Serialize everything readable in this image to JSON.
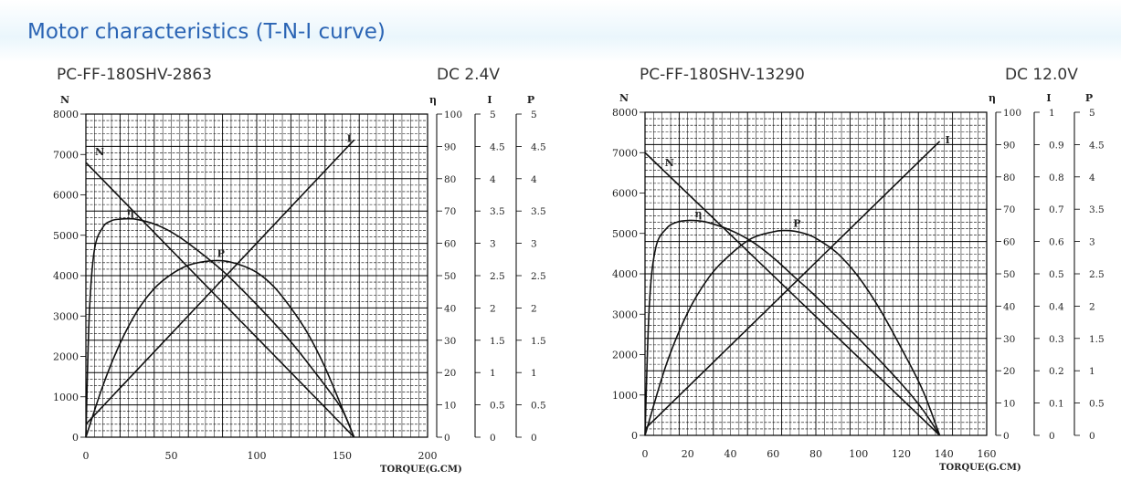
{
  "page": {
    "title": "Motor characteristics (T-N-I curve)"
  },
  "chart_data": [
    {
      "type": "line",
      "model": "PC-FF-180SHV-2863",
      "voltage": "DC 2.4V",
      "xlabel": "TORQUE(G.CM)",
      "x_ticks": [
        "0",
        "50",
        "100",
        "150",
        "200"
      ],
      "xlim": [
        0,
        200
      ],
      "axes": [
        {
          "name": "N",
          "ylim": [
            0,
            8000
          ],
          "ticks": [
            "0",
            "1000",
            "2000",
            "3000",
            "4000",
            "5000",
            "6000",
            "7000",
            "8000"
          ]
        },
        {
          "name": "η",
          "ylim": [
            0,
            100
          ],
          "ticks": [
            "0",
            "10",
            "20",
            "30",
            "40",
            "50",
            "60",
            "70",
            "80",
            "90",
            "100"
          ]
        },
        {
          "name": "I",
          "ylim": [
            0,
            5
          ],
          "ticks": [
            "0",
            "0.5",
            "1",
            "1.5",
            "2",
            "2.5",
            "3",
            "3.5",
            "4",
            "4.5",
            "5"
          ]
        },
        {
          "name": "P",
          "ylim": [
            0,
            5
          ],
          "ticks": [
            "0",
            "0.5",
            "1",
            "1.5",
            "2",
            "2.5",
            "3",
            "3.5",
            "4",
            "4.5",
            "5"
          ]
        }
      ],
      "series": [
        {
          "name": "N",
          "axis": "N",
          "x": [
            0,
            157
          ],
          "y": [
            6800,
            0
          ]
        },
        {
          "name": "I",
          "axis": "I",
          "x": [
            0,
            157
          ],
          "y": [
            0.2,
            4.6
          ]
        },
        {
          "name": "η",
          "axis": "η",
          "x": [
            0,
            2,
            5,
            10,
            15,
            20,
            25,
            30,
            40,
            50,
            60,
            80,
            100,
            120,
            140,
            150,
            157
          ],
          "y": [
            0,
            38,
            58,
            65,
            67,
            67.5,
            67.6,
            67.4,
            66,
            63.5,
            60,
            51.5,
            41,
            29.5,
            16,
            8.5,
            0
          ]
        },
        {
          "name": "P",
          "axis": "P",
          "x": [
            0,
            10,
            20,
            30,
            40,
            50,
            60,
            70,
            80,
            90,
            100,
            110,
            120,
            130,
            140,
            150,
            157
          ],
          "y": [
            0,
            0.8,
            1.45,
            1.95,
            2.3,
            2.52,
            2.66,
            2.72,
            2.73,
            2.67,
            2.55,
            2.33,
            2.0,
            1.6,
            1.08,
            0.45,
            0
          ]
        }
      ],
      "curve_labels": [
        "N",
        "I",
        "η",
        "P"
      ],
      "grid": true
    },
    {
      "type": "line",
      "model": "PC-FF-180SHV-13290",
      "voltage": "DC 12.0V",
      "xlabel": "TORQUE(G.CM)",
      "x_ticks": [
        "0",
        "20",
        "40",
        "60",
        "80",
        "100",
        "120",
        "140",
        "160"
      ],
      "xlim": [
        0,
        160
      ],
      "axes": [
        {
          "name": "N",
          "ylim": [
            0,
            8000
          ],
          "ticks": [
            "0",
            "1000",
            "2000",
            "3000",
            "4000",
            "5000",
            "6000",
            "7000",
            "8000"
          ]
        },
        {
          "name": "η",
          "ylim": [
            0,
            100
          ],
          "ticks": [
            "0",
            "10",
            "20",
            "30",
            "40",
            "50",
            "60",
            "70",
            "80",
            "90",
            "100"
          ]
        },
        {
          "name": "I",
          "ylim": [
            0,
            1
          ],
          "ticks": [
            "0",
            "0.1",
            "0.2",
            "0.3",
            "0.4",
            "0.5",
            "0.6",
            "0.7",
            "0.8",
            "0.9",
            "1"
          ]
        },
        {
          "name": "P",
          "ylim": [
            0,
            5
          ],
          "ticks": [
            "0",
            "0.5",
            "1",
            "1.5",
            "2",
            "2.5",
            "3",
            "3.5",
            "4",
            "4.5",
            "5"
          ]
        }
      ],
      "series": [
        {
          "name": "N",
          "axis": "N",
          "x": [
            0,
            138
          ],
          "y": [
            7000,
            0
          ]
        },
        {
          "name": "I",
          "axis": "I",
          "x": [
            0,
            138
          ],
          "y": [
            0.02,
            0.91
          ]
        },
        {
          "name": "η",
          "axis": "η",
          "x": [
            0,
            2,
            5,
            10,
            15,
            20,
            25,
            30,
            40,
            50,
            60,
            70,
            80,
            100,
            120,
            130,
            138
          ],
          "y": [
            0,
            40,
            58,
            64,
            66,
            66.5,
            66.4,
            65.8,
            63.5,
            60,
            55,
            49,
            43,
            30,
            16,
            8,
            0
          ]
        },
        {
          "name": "P",
          "axis": "P",
          "x": [
            0,
            10,
            20,
            30,
            40,
            50,
            60,
            65,
            70,
            75,
            80,
            90,
            100,
            110,
            120,
            130,
            138
          ],
          "y": [
            0,
            1.1,
            1.9,
            2.45,
            2.8,
            3.05,
            3.15,
            3.17,
            3.16,
            3.12,
            3.05,
            2.82,
            2.45,
            1.95,
            1.35,
            0.7,
            0
          ]
        }
      ],
      "curve_labels": [
        "N",
        "I",
        "η",
        "P"
      ],
      "grid": true
    }
  ]
}
